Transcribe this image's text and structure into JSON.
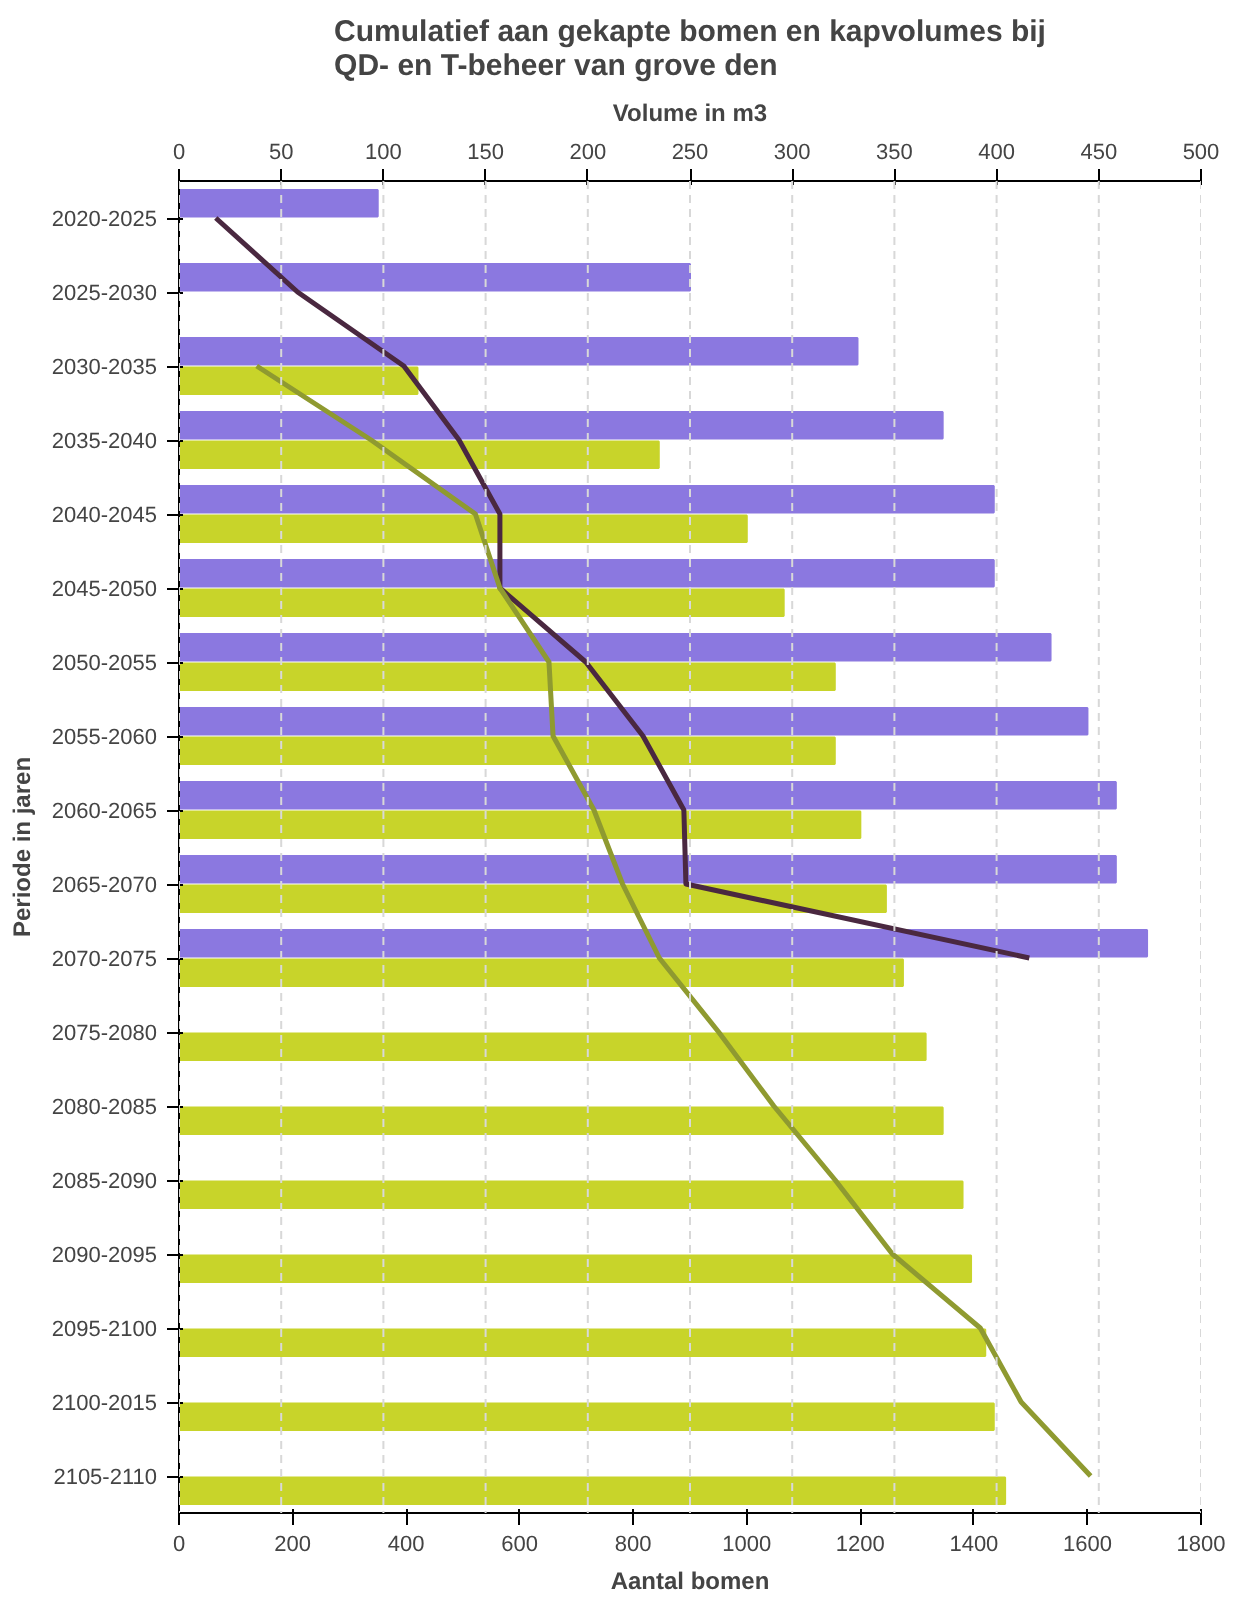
{
  "chart_data": {
    "type": "bar",
    "orientation": "horizontal",
    "title": "Cumulatief aan gekapte bomen en kapvolumes bij QD- en T-beheer van grove den",
    "xlabel": "Aantal bomen",
    "x2label": "Volume in m3",
    "ylabel": "Periode in jaren",
    "categories": [
      "2020-2025",
      "2025-2030",
      "2030-2035",
      "2035-2040",
      "2040-2045",
      "2045-2050",
      "2050-2055",
      "2055-2060",
      "2060-2065",
      "2065-2070",
      "2070-2075",
      "2075-2080",
      "2080-2085",
      "2085-2090",
      "2090-2095",
      "2095-2100",
      "2100-2015",
      "2105-2110"
    ],
    "xlim": [
      0,
      1800
    ],
    "xticks": [
      0,
      200,
      400,
      600,
      800,
      1000,
      1200,
      1400,
      1600,
      1800
    ],
    "x2lim": [
      0,
      500
    ],
    "x2ticks": [
      0,
      50,
      100,
      150,
      200,
      250,
      300,
      350,
      400,
      450,
      500
    ],
    "grid": "x2",
    "series": [
      {
        "color": "#8b78e0",
        "values": [
          350,
          900,
          1195,
          1345,
          1435,
          1435,
          1535,
          1600,
          1650,
          1650,
          1705,
          null,
          null,
          null,
          null,
          null,
          null,
          null
        ]
      },
      {
        "color": "#c8d42a",
        "values": [
          null,
          null,
          420,
          845,
          1000,
          1065,
          1155,
          1155,
          1200,
          1245,
          1275,
          1315,
          1345,
          1380,
          1395,
          1420,
          1435,
          1455
        ]
      },
      {
        "type": "line",
        "axis": "x2",
        "color": "#4a2840",
        "values": [
          18,
          58,
          110,
          137,
          157,
          157,
          199,
          227,
          247,
          248,
          416,
          null,
          null,
          null,
          null,
          null,
          null,
          null
        ]
      },
      {
        "type": "line",
        "axis": "x2",
        "color": "#8f9a30",
        "values": [
          null,
          null,
          38,
          94,
          145,
          157,
          181,
          183,
          203,
          217,
          235,
          264,
          291,
          321,
          349,
          392,
          412,
          446
        ]
      }
    ]
  }
}
